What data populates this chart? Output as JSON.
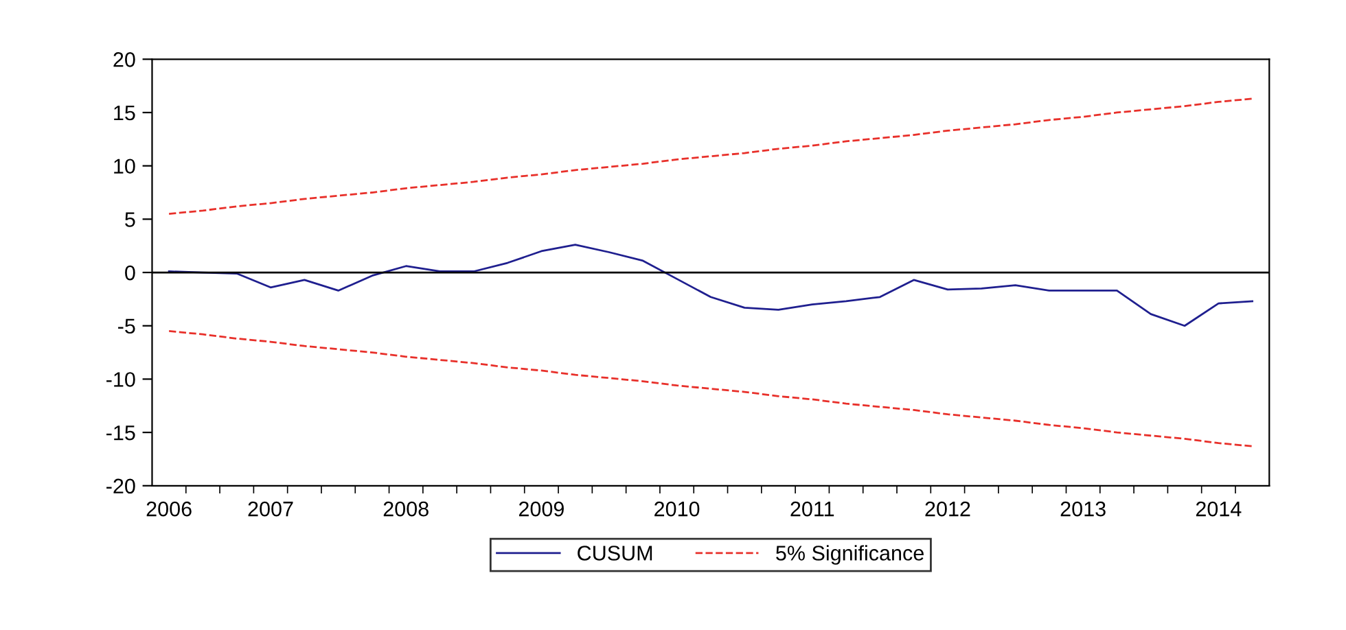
{
  "chart_data": {
    "type": "line",
    "categories": [
      "2006",
      null,
      null,
      "2007",
      null,
      null,
      null,
      "2008",
      null,
      null,
      null,
      "2009",
      null,
      null,
      null,
      "2010",
      null,
      null,
      null,
      "2011",
      null,
      null,
      null,
      "2012",
      null,
      null,
      null,
      "2013",
      null,
      null,
      null,
      "2014",
      null
    ],
    "ylim": [
      -20,
      20
    ],
    "yticks": [
      -20,
      -15,
      -10,
      -5,
      0,
      5,
      10,
      15,
      20
    ],
    "grid": false,
    "legend": "bottom",
    "ref_lines": [
      {
        "axis": "y",
        "value": 0,
        "color": "#000000",
        "line_style": "solid"
      }
    ],
    "series": [
      {
        "name": "CUSUM",
        "color": "#1f1f8f",
        "line_style": "solid",
        "values": [
          0.1,
          0.0,
          -0.1,
          -1.4,
          -0.7,
          -1.7,
          -0.3,
          0.6,
          0.1,
          0.1,
          0.9,
          2.0,
          2.6,
          1.9,
          1.1,
          -0.6,
          -2.3,
          -3.3,
          -3.5,
          -3.0,
          -2.7,
          -2.3,
          -0.7,
          -1.6,
          -1.5,
          -1.2,
          -1.7,
          -1.7,
          -1.7,
          -3.9,
          -5.0,
          -2.9,
          -2.7
        ]
      },
      {
        "name": "5% Significance",
        "color": "#e8302a",
        "line_style": "dashed",
        "values": [
          5.5,
          5.8,
          6.2,
          6.5,
          6.9,
          7.2,
          7.5,
          7.9,
          8.2,
          8.5,
          8.9,
          9.2,
          9.6,
          9.9,
          10.2,
          10.6,
          10.9,
          11.2,
          11.6,
          11.9,
          12.3,
          12.6,
          12.9,
          13.3,
          13.6,
          13.9,
          14.3,
          14.6,
          15.0,
          15.3,
          15.6,
          16.0,
          16.3
        ]
      },
      {
        "color": "#e8302a",
        "line_style": "dashed",
        "values": [
          -5.5,
          -5.8,
          -6.2,
          -6.5,
          -6.9,
          -7.2,
          -7.5,
          -7.9,
          -8.2,
          -8.5,
          -8.9,
          -9.2,
          -9.6,
          -9.9,
          -10.2,
          -10.6,
          -10.9,
          -11.2,
          -11.6,
          -11.9,
          -12.3,
          -12.6,
          -12.9,
          -13.3,
          -13.6,
          -13.9,
          -14.3,
          -14.6,
          -15.0,
          -15.3,
          -15.6,
          -16.0,
          -16.3
        ]
      }
    ]
  }
}
